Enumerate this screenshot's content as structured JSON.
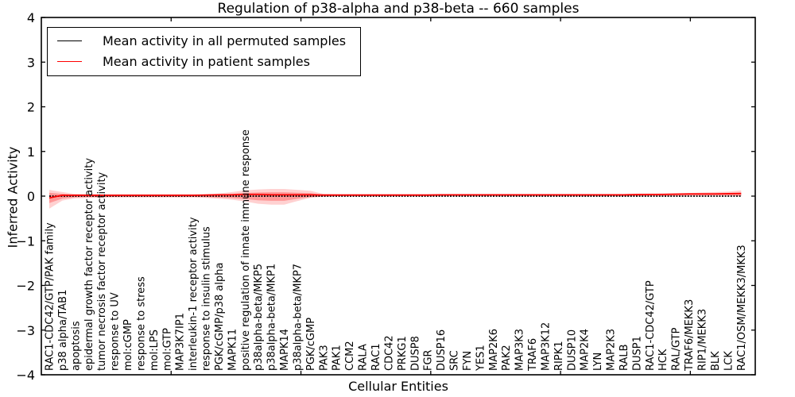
{
  "title": "Regulation of p38-alpha and p38-beta -- 660 samples",
  "chart_data": {
    "type": "line",
    "title": "Regulation of p38-alpha and p38-beta -- 660 samples",
    "xlabel": "Cellular Entities",
    "ylabel": "Inferred Activity",
    "ylim": [
      -4,
      4
    ],
    "yticks": [
      -4,
      -3,
      -2,
      -1,
      0,
      1,
      2,
      3,
      4
    ],
    "xticks": [
      10,
      20,
      30,
      40,
      50
    ],
    "xlim": [
      0,
      55
    ],
    "grid": false,
    "legend_position": "upper left",
    "categories": [
      "RAC1-CDC42/GTP/PAK family",
      "p38 alpha/TAB1",
      "apoptosis",
      "epidermal growth factor receptor activity",
      "tumor necrosis factor receptor activity",
      "response to UV",
      "mol:cGMP",
      "response to stress",
      "mol:LPS",
      "mol:GTP",
      "MAP3K7IP1",
      "interleukin-1 receptor activity",
      "response to insulin stimulus",
      "PGK/cGMP/p38 alpha",
      "MAPK11",
      "positive regulation of innate immune response",
      "p38alpha-beta/MKP5",
      "p38alpha-beta/MKP1",
      "MAPK14",
      "p38alpha-beta/MKP7",
      "PGK/cGMP",
      "PAK3",
      "PAK1",
      "CCM2",
      "RALA",
      "RAC1",
      "CDC42",
      "PRKG1",
      "DUSP8",
      "FGR",
      "DUSP16",
      "SRC",
      "FYN",
      "YES1",
      "MAP2K6",
      "PAK2",
      "MAP3K3",
      "TRAF6",
      "MAP3K12",
      "RIPK1",
      "DUSP10",
      "MAP2K4",
      "LYN",
      "MAP2K3",
      "RALB",
      "DUSP1",
      "RAC1-CDC42/GTP",
      "HCK",
      "RAL/GTP",
      "TRAF6/MEKK3",
      "RIP1/MEKK3",
      "BLK",
      "LCK",
      "RAC1/OSM/MEKK3/MKK3"
    ],
    "series": [
      {
        "name": "Mean activity in all permuted samples",
        "color": "#000000",
        "style": "dotted",
        "values": [
          0,
          0,
          0,
          0,
          0,
          0,
          0,
          0,
          0,
          0,
          0,
          0,
          0,
          0,
          0,
          0,
          0,
          0,
          0,
          0,
          0,
          0,
          0,
          0,
          0,
          0,
          0,
          0,
          0,
          0,
          0,
          0,
          0,
          0,
          0,
          0,
          0,
          0,
          0,
          0,
          0,
          0,
          0,
          0,
          0,
          0,
          0,
          0,
          0,
          0,
          0,
          0,
          0,
          0
        ]
      },
      {
        "name": "Mean activity in patient samples",
        "color": "#ff0000",
        "style": "solid",
        "values": [
          -0.04,
          0.02,
          0.02,
          0.02,
          0.02,
          0.02,
          0.02,
          0.02,
          0.02,
          0.02,
          0.02,
          0.02,
          0.025,
          0.03,
          0.03,
          0.04,
          0.04,
          0.03,
          0.03,
          0.03,
          0.03,
          0.025,
          0.025,
          0.025,
          0.025,
          0.025,
          0.025,
          0.025,
          0.025,
          0.025,
          0.03,
          0.03,
          0.03,
          0.03,
          0.03,
          0.03,
          0.03,
          0.03,
          0.03,
          0.03,
          0.03,
          0.03,
          0.03,
          0.03,
          0.03,
          0.035,
          0.04,
          0.04,
          0.045,
          0.05,
          0.05,
          0.05,
          0.055,
          0.06
        ]
      }
    ],
    "band": {
      "name": "patient activity spread",
      "color": "#ff0000",
      "outer_opacity": 0.18,
      "inner_opacity": 0.28,
      "upper": [
        0.14,
        0.09,
        0.05,
        0.04,
        0.035,
        0.03,
        0.03,
        0.03,
        0.03,
        0.03,
        0.03,
        0.03,
        0.04,
        0.06,
        0.09,
        0.13,
        0.15,
        0.16,
        0.16,
        0.14,
        0.12,
        0.05,
        0.045,
        0.045,
        0.045,
        0.045,
        0.045,
        0.045,
        0.045,
        0.045,
        0.045,
        0.045,
        0.045,
        0.045,
        0.045,
        0.045,
        0.045,
        0.045,
        0.045,
        0.045,
        0.045,
        0.045,
        0.045,
        0.045,
        0.045,
        0.05,
        0.05,
        0.06,
        0.06,
        0.07,
        0.08,
        0.09,
        0.1,
        0.13
      ],
      "lower": [
        -0.28,
        -0.1,
        -0.05,
        -0.04,
        -0.035,
        -0.03,
        -0.03,
        -0.03,
        -0.03,
        -0.03,
        -0.03,
        -0.03,
        -0.04,
        -0.06,
        -0.08,
        -0.12,
        -0.17,
        -0.19,
        -0.19,
        -0.11,
        -0.04,
        -0.01,
        0,
        0,
        0,
        0,
        0,
        0,
        0,
        0,
        0,
        0,
        0,
        0,
        0,
        0,
        0,
        0,
        0,
        0,
        0,
        0,
        0,
        0,
        0,
        0.005,
        0.005,
        0.01,
        0.01,
        0.015,
        0.015,
        0.02,
        0.02,
        0
      ]
    }
  }
}
